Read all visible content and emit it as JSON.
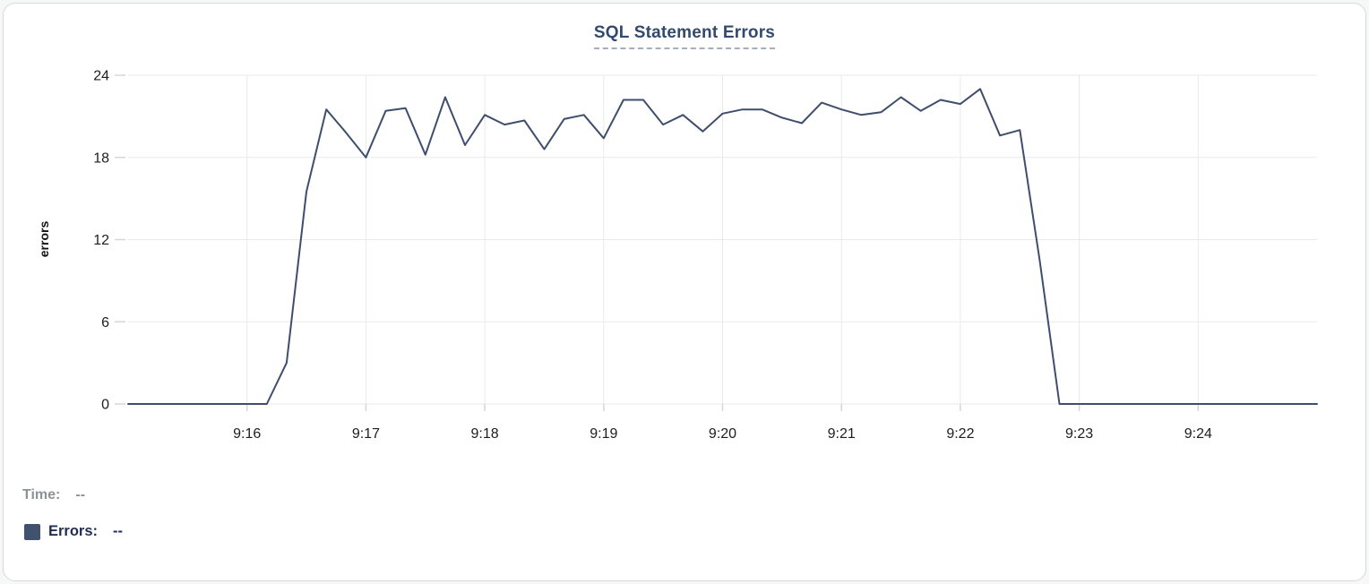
{
  "card": {
    "title": "SQL Statement Errors"
  },
  "readout": {
    "time_label": "Time:",
    "time_value": "--",
    "errors_label": "Errors:",
    "errors_value": "--"
  },
  "colors": {
    "line": "#3e4e6c",
    "swatch": "#41526f",
    "title": "#33496e",
    "title_underline": "#a3aebf",
    "grid": "#e8eaec",
    "tick": "#d4d6d8",
    "axis_text": "#1d1d1f",
    "axis_title_text": "#111111",
    "time_label": "#8e9196",
    "errors_label": "#1f2e54",
    "card_border": "#d8d8d8"
  },
  "chart_data": {
    "type": "line",
    "title": "SQL Statement Errors",
    "xlabel": "",
    "ylabel": "errors",
    "ylim": [
      0,
      24
    ],
    "yticks": [
      0,
      6,
      12,
      18,
      24
    ],
    "xtick_labels": [
      "9:16",
      "9:17",
      "9:18",
      "9:19",
      "9:20",
      "9:21",
      "9:22",
      "9:23",
      "9:24"
    ],
    "x_start": "9:15:00",
    "x_end": "9:25:00",
    "grid": true,
    "legend_position": "bottom-left",
    "series": [
      {
        "name": "Errors",
        "x_times": [
          "9:15:00",
          "9:15:10",
          "9:15:20",
          "9:15:30",
          "9:15:40",
          "9:15:50",
          "9:16:00",
          "9:16:10",
          "9:16:20",
          "9:16:30",
          "9:16:40",
          "9:16:50",
          "9:17:00",
          "9:17:10",
          "9:17:20",
          "9:17:30",
          "9:17:40",
          "9:17:50",
          "9:18:00",
          "9:18:10",
          "9:18:20",
          "9:18:30",
          "9:18:40",
          "9:18:50",
          "9:19:00",
          "9:19:10",
          "9:19:20",
          "9:19:30",
          "9:19:40",
          "9:19:50",
          "9:20:00",
          "9:20:10",
          "9:20:20",
          "9:20:30",
          "9:20:40",
          "9:20:50",
          "9:21:00",
          "9:21:10",
          "9:21:20",
          "9:21:30",
          "9:21:40",
          "9:21:50",
          "9:22:00",
          "9:22:10",
          "9:22:20",
          "9:22:30",
          "9:22:40",
          "9:22:50",
          "9:23:00",
          "9:23:10",
          "9:23:20",
          "9:23:30",
          "9:23:40",
          "9:23:50",
          "9:24:00",
          "9:24:10",
          "9:24:20",
          "9:24:30",
          "9:24:40",
          "9:24:50",
          "9:25:00"
        ],
        "values": [
          0,
          0,
          0,
          0,
          0,
          0,
          0,
          0,
          3,
          15.5,
          21.5,
          19.8,
          18,
          21.4,
          21.6,
          18.2,
          22.4,
          18.9,
          21.1,
          20.4,
          20.7,
          18.6,
          20.8,
          21.1,
          19.4,
          22.2,
          22.2,
          20.4,
          21.1,
          19.9,
          21.2,
          21.5,
          21.5,
          20.9,
          20.5,
          22,
          21.5,
          21.1,
          21.3,
          22.4,
          21.4,
          22.2,
          21.9,
          23,
          19.6,
          20,
          10.5,
          0,
          0,
          0,
          0,
          0,
          0,
          0,
          0,
          0,
          0,
          0,
          0,
          0,
          0
        ]
      }
    ]
  }
}
